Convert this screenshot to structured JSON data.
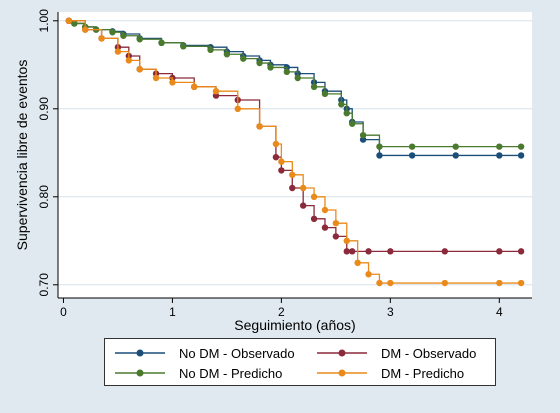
{
  "chart_data": {
    "type": "line",
    "title": "",
    "xlabel": "Seguimiento (años)",
    "ylabel": "Supervivencia libre de eventos",
    "xlim": [
      -0.05,
      4.3
    ],
    "ylim": [
      0.685,
      1.01
    ],
    "xticks": [
      0,
      1,
      2,
      3,
      4
    ],
    "yticks": [
      0.7,
      0.8,
      0.9,
      1.0
    ],
    "ytick_labels": [
      "0.70",
      "0.80",
      "0.90",
      "1.00"
    ],
    "grid": "horizontal",
    "legend_position": "bottom",
    "series": [
      {
        "name": "No DM - Observado",
        "color": "#1c4e7a",
        "x": [
          0.05,
          0.1,
          0.2,
          0.3,
          0.45,
          0.55,
          0.7,
          0.9,
          1.1,
          1.35,
          1.5,
          1.65,
          1.8,
          1.9,
          2.05,
          2.15,
          2.3,
          2.4,
          2.55,
          2.6,
          2.65,
          2.75,
          2.9,
          3.2,
          3.6,
          4.0,
          4.2
        ],
        "y": [
          1.0,
          0.997,
          0.993,
          0.99,
          0.988,
          0.985,
          0.98,
          0.975,
          0.972,
          0.97,
          0.965,
          0.96,
          0.955,
          0.95,
          0.947,
          0.94,
          0.93,
          0.92,
          0.91,
          0.9,
          0.885,
          0.865,
          0.847,
          0.847,
          0.847,
          0.847,
          0.847
        ]
      },
      {
        "name": "No DM - Predicho",
        "color": "#4a7a2e",
        "x": [
          0.05,
          0.1,
          0.2,
          0.3,
          0.45,
          0.55,
          0.7,
          0.9,
          1.1,
          1.35,
          1.5,
          1.65,
          1.8,
          1.9,
          2.05,
          2.15,
          2.3,
          2.4,
          2.55,
          2.6,
          2.65,
          2.75,
          2.9,
          3.2,
          3.6,
          4.0,
          4.2
        ],
        "y": [
          1.0,
          0.997,
          0.993,
          0.99,
          0.987,
          0.983,
          0.979,
          0.975,
          0.971,
          0.967,
          0.962,
          0.957,
          0.952,
          0.947,
          0.942,
          0.935,
          0.925,
          0.917,
          0.905,
          0.895,
          0.883,
          0.87,
          0.857,
          0.857,
          0.857,
          0.857,
          0.857
        ]
      },
      {
        "name": "DM - Observado",
        "color": "#8b2a3a",
        "x": [
          0.05,
          0.2,
          0.35,
          0.5,
          0.6,
          0.7,
          0.85,
          1.0,
          1.2,
          1.4,
          1.6,
          1.8,
          1.95,
          2.0,
          2.1,
          2.2,
          2.3,
          2.4,
          2.5,
          2.6,
          2.65,
          2.8,
          3.0,
          3.5,
          4.0,
          4.2
        ],
        "y": [
          1.0,
          0.99,
          0.98,
          0.97,
          0.96,
          0.945,
          0.94,
          0.935,
          0.925,
          0.915,
          0.91,
          0.88,
          0.845,
          0.83,
          0.81,
          0.79,
          0.775,
          0.765,
          0.755,
          0.738,
          0.738,
          0.738,
          0.738,
          0.738,
          0.738,
          0.738
        ]
      },
      {
        "name": "DM - Predicho",
        "color": "#e98a1a",
        "x": [
          0.05,
          0.2,
          0.35,
          0.5,
          0.6,
          0.7,
          0.85,
          1.0,
          1.2,
          1.4,
          1.6,
          1.8,
          1.95,
          2.0,
          2.1,
          2.2,
          2.3,
          2.4,
          2.5,
          2.6,
          2.7,
          2.8,
          2.9,
          3.0,
          3.5,
          4.0,
          4.2
        ],
        "y": [
          1.0,
          0.99,
          0.98,
          0.965,
          0.955,
          0.945,
          0.935,
          0.93,
          0.925,
          0.92,
          0.9,
          0.88,
          0.86,
          0.84,
          0.825,
          0.81,
          0.8,
          0.785,
          0.77,
          0.75,
          0.725,
          0.712,
          0.702,
          0.702,
          0.702,
          0.702,
          0.702
        ]
      }
    ]
  }
}
